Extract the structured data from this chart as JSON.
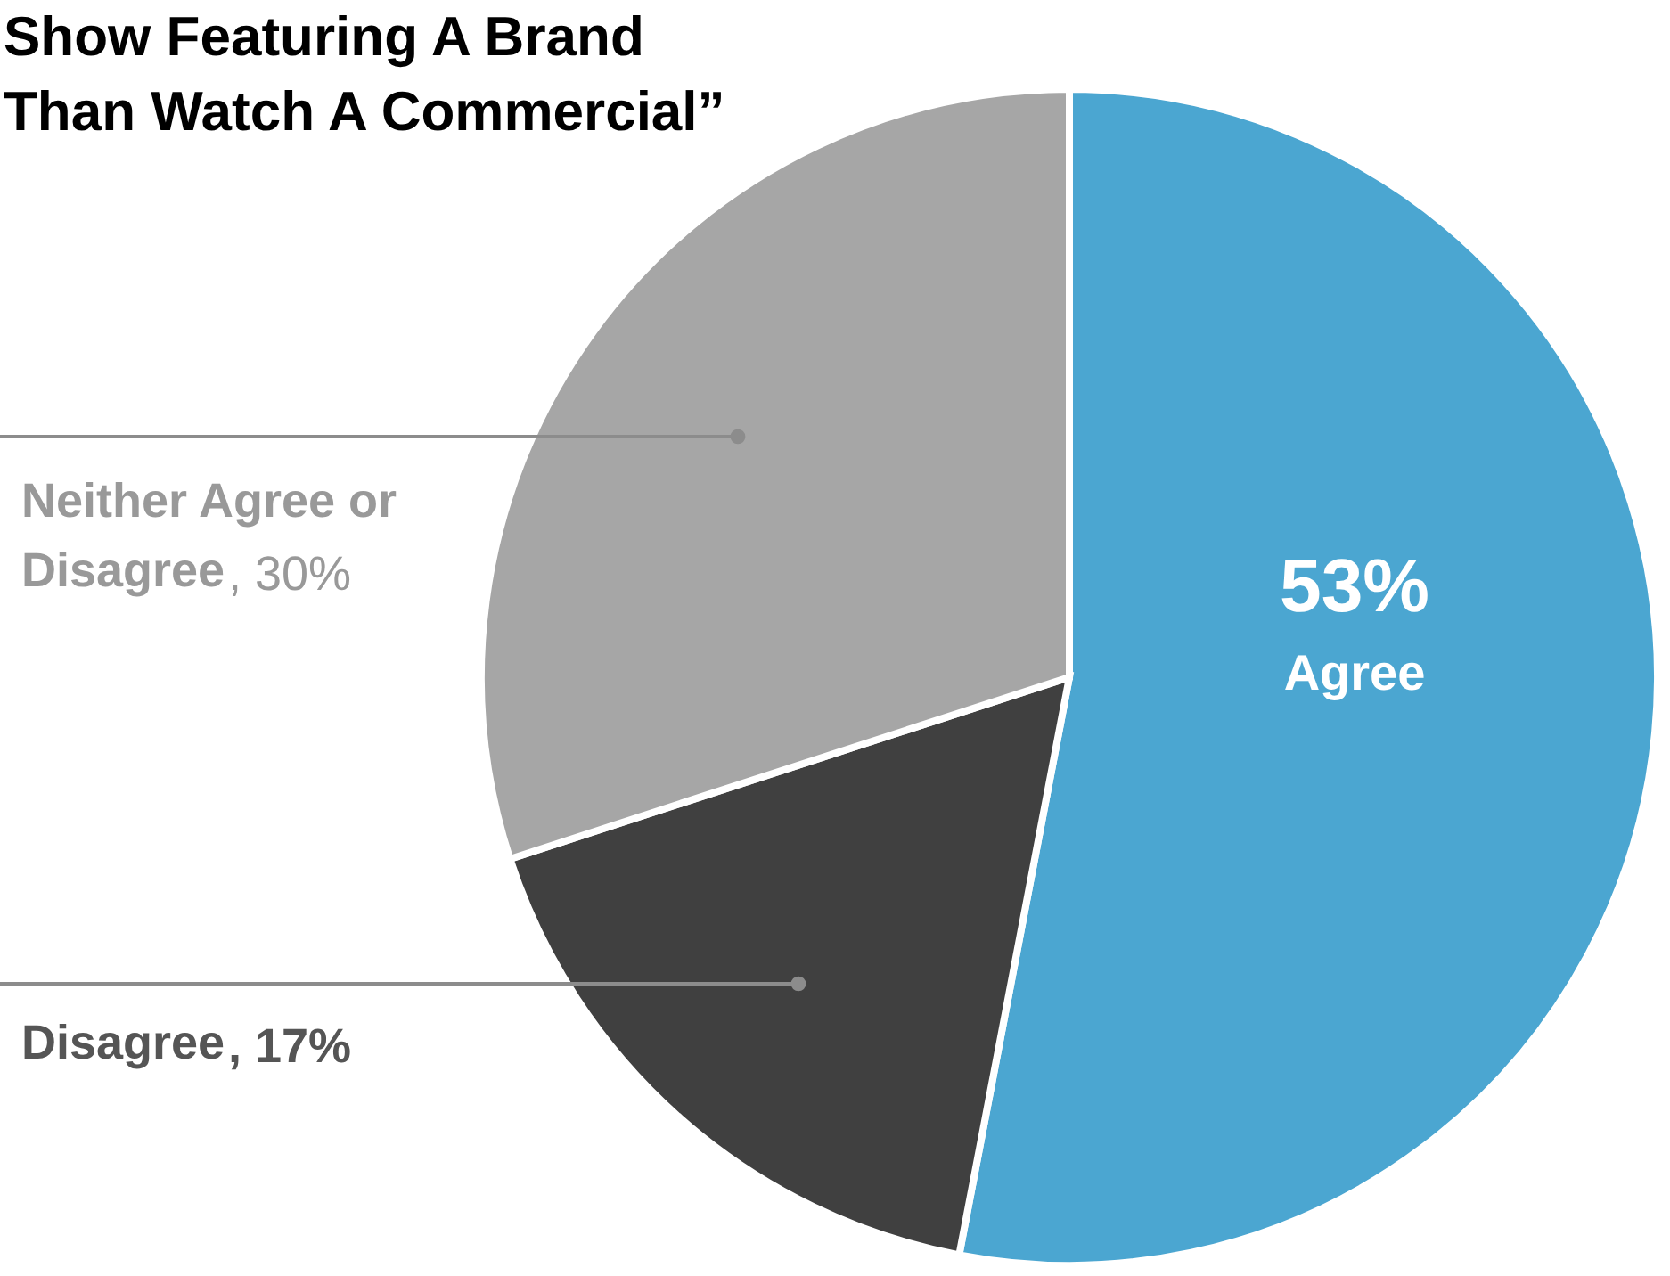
{
  "chart_data": {
    "type": "pie",
    "title": "Show Featuring A Brand Than Watch A Commercial”",
    "categories": [
      "Agree",
      "Disagree",
      "Neither Agree or Disagree"
    ],
    "values": [
      53,
      17,
      30
    ],
    "colors": [
      "#4ba6d1",
      "#404040",
      "#a6a6a6"
    ],
    "value_labels": [
      "53%",
      ", 17%",
      ", 30%"
    ]
  }
}
